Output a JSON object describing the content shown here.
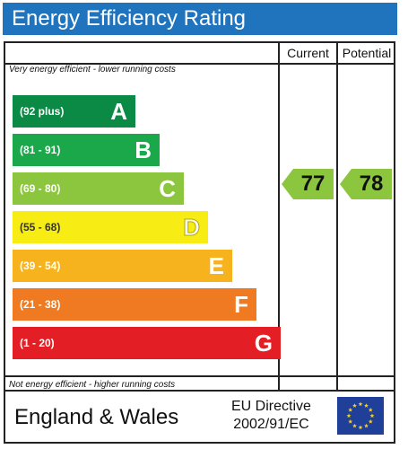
{
  "header": {
    "title": "Energy Efficiency Rating"
  },
  "columns": {
    "current": "Current",
    "potential": "Potential"
  },
  "notes": {
    "top": "Very energy efficient - lower running costs",
    "bottom": "Not energy efficient - higher running costs"
  },
  "bands": [
    {
      "range": "(92 plus)",
      "letter": "A",
      "color": "#0a8a44"
    },
    {
      "range": "(81 - 91)",
      "letter": "B",
      "color": "#1aa84b"
    },
    {
      "range": "(69 - 80)",
      "letter": "C",
      "color": "#8cc63f"
    },
    {
      "range": "(55 - 68)",
      "letter": "D",
      "color": "#f7ec13"
    },
    {
      "range": "(39 - 54)",
      "letter": "E",
      "color": "#f6b31e"
    },
    {
      "range": "(21 - 38)",
      "letter": "F",
      "color": "#ef7a22"
    },
    {
      "range": "(1 - 20)",
      "letter": "G",
      "color": "#e31e25"
    }
  ],
  "ratings": {
    "current": {
      "value": "77",
      "color": "#8cc63f"
    },
    "potential": {
      "value": "78",
      "color": "#8cc63f"
    }
  },
  "footer": {
    "region": "England & Wales",
    "directive_line1": "EU Directive",
    "directive_line2": "2002/91/EC"
  }
}
